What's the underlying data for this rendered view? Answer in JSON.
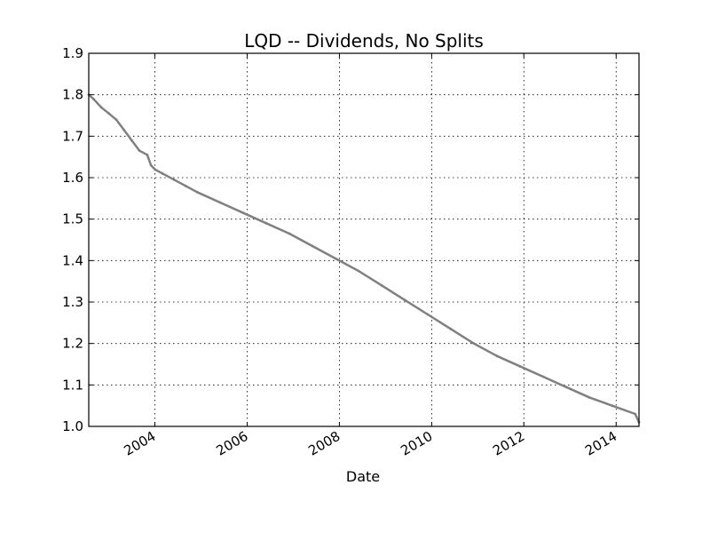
{
  "chart_data": {
    "type": "line",
    "title": "LQD -- Dividends, No Splits",
    "xlabel": "Date",
    "ylabel": "",
    "x_ticks": [
      "2004",
      "2006",
      "2008",
      "2010",
      "2012",
      "2014"
    ],
    "y_ticks": [
      "1.0",
      "1.1",
      "1.2",
      "1.3",
      "1.4",
      "1.5",
      "1.6",
      "1.7",
      "1.8",
      "1.9"
    ],
    "xlim": [
      "2002-07-26",
      "2014-07-01"
    ],
    "ylim": [
      1.0,
      1.9
    ],
    "grid": true,
    "line_color": "#808080",
    "series": [
      {
        "x": [
          "2002-07-26",
          "2002-09-01",
          "2002-11-01",
          "2003-01-01",
          "2003-03-01",
          "2003-05-01",
          "2003-07-01",
          "2003-09-01",
          "2003-11-01",
          "2003-12-01",
          "2004-01-01",
          "2004-03-01",
          "2004-06-01",
          "2004-09-01",
          "2004-12-01",
          "2005-06-01",
          "2005-12-01",
          "2006-06-01",
          "2006-12-01",
          "2007-06-01",
          "2007-12-01",
          "2008-06-01",
          "2008-12-01",
          "2009-06-01",
          "2009-12-01",
          "2010-06-01",
          "2010-12-01",
          "2011-06-01",
          "2011-12-01",
          "2012-06-01",
          "2012-12-01",
          "2013-06-01",
          "2013-12-01",
          "2014-06-01",
          "2014-07-01"
        ],
        "y": [
          1.8,
          1.79,
          1.77,
          1.755,
          1.74,
          1.715,
          1.69,
          1.665,
          1.655,
          1.63,
          1.62,
          1.61,
          1.595,
          1.58,
          1.565,
          1.54,
          1.515,
          1.49,
          1.465,
          1.435,
          1.405,
          1.375,
          1.34,
          1.305,
          1.27,
          1.235,
          1.2,
          1.17,
          1.145,
          1.12,
          1.095,
          1.07,
          1.05,
          1.03,
          1.01
        ]
      }
    ]
  }
}
